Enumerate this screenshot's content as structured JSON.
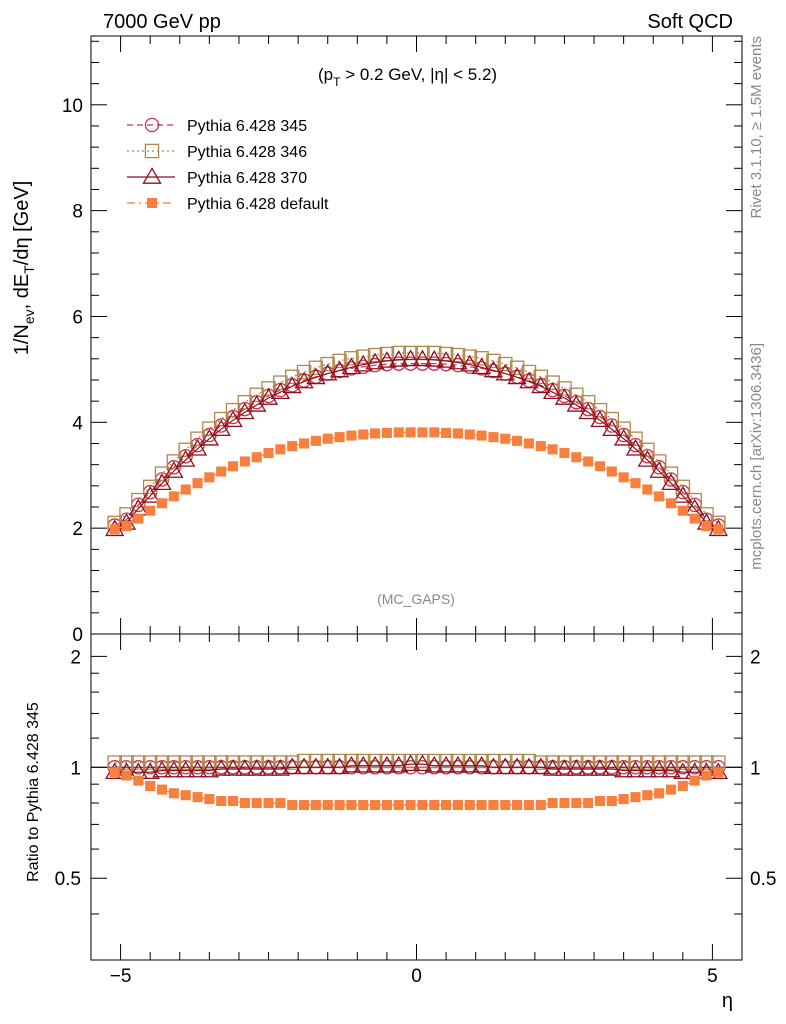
{
  "header": {
    "left": "7000 GeV pp",
    "right": "Soft QCD"
  },
  "side_text": {
    "rivet": "Rivet 3.1.10, ≥ 1.5M events",
    "source": "mcplots.cern.ch [arXiv:1306.3436]"
  },
  "chart_data": {
    "type": "scatter",
    "annotation": "(MC_GAPS)",
    "cut_label": {
      "pre": "(p",
      "sub": "T",
      "post": " > 0.2 GeV, |η| < 5.2)"
    },
    "xlabel": "η",
    "xlim": [
      -5.5,
      5.5
    ],
    "xticks": [
      -5,
      0,
      5
    ],
    "xtick_labels": [
      "−5",
      "0",
      "5"
    ],
    "main": {
      "ylabel": {
        "a": "1/N",
        "a_sub": "ev",
        "b": ", dE",
        "b_sub": "T",
        "c": "/dη [GeV]"
      },
      "ylim": [
        0,
        11.3
      ],
      "yticks": [
        0,
        2,
        4,
        6,
        8,
        10
      ],
      "ytick_labels": [
        "0",
        "2",
        "4",
        "6",
        "8",
        "10"
      ]
    },
    "ratio": {
      "ylabel": "Ratio to Pythia 6.428 345",
      "ylim": [
        0.3,
        2.3
      ],
      "log": true,
      "yticks": [
        0.5,
        1,
        2
      ],
      "ytick_labels": [
        "0.5",
        "1",
        "2"
      ]
    },
    "legend_position": "top-left",
    "x": [
      -5.1,
      -4.9,
      -4.7,
      -4.5,
      -4.3,
      -4.1,
      -3.9,
      -3.7,
      -3.5,
      -3.3,
      -3.1,
      -2.9,
      -2.7,
      -2.5,
      -2.3,
      -2.1,
      -1.9,
      -1.7,
      -1.5,
      -1.3,
      -1.1,
      -0.9,
      -0.7,
      -0.5,
      -0.3,
      -0.1,
      0.1,
      0.3,
      0.5,
      0.7,
      0.9,
      1.1,
      1.3,
      1.5,
      1.7,
      1.9,
      2.1,
      2.3,
      2.5,
      2.7,
      2.9,
      3.1,
      3.3,
      3.5,
      3.7,
      3.9,
      4.1,
      4.3,
      4.5,
      4.7,
      4.9,
      5.1
    ],
    "series": [
      {
        "name": "Pythia 6.428 345",
        "color": "#c8334f",
        "marker": "open-circle",
        "linestyle": "dashed",
        "values": [
          2.05,
          2.16,
          2.44,
          2.68,
          2.92,
          3.15,
          3.36,
          3.57,
          3.76,
          3.94,
          4.1,
          4.25,
          4.38,
          4.5,
          4.61,
          4.7,
          4.79,
          4.86,
          4.92,
          4.97,
          5.02,
          5.05,
          5.08,
          5.1,
          5.11,
          5.11,
          5.11,
          5.11,
          5.1,
          5.08,
          5.05,
          5.02,
          4.97,
          4.92,
          4.86,
          4.79,
          4.7,
          4.61,
          4.5,
          4.38,
          4.25,
          4.1,
          3.94,
          3.76,
          3.57,
          3.36,
          3.15,
          2.92,
          2.68,
          2.44,
          2.16,
          2.05
        ],
        "ratio": [
          1,
          1,
          1,
          1,
          1,
          1,
          1,
          1,
          1,
          1,
          1,
          1,
          1,
          1,
          1,
          1,
          1,
          1,
          1,
          1,
          1,
          1,
          1,
          1,
          1,
          1,
          1,
          1,
          1,
          1,
          1,
          1,
          1,
          1,
          1,
          1,
          1,
          1,
          1,
          1,
          1,
          1,
          1,
          1,
          1,
          1,
          1,
          1,
          1,
          1,
          1,
          1
        ]
      },
      {
        "name": "Pythia 6.428 346",
        "color": "#b0874c",
        "marker": "open-square",
        "linestyle": "dotted",
        "values": [
          2.1,
          2.26,
          2.53,
          2.78,
          3.03,
          3.26,
          3.48,
          3.69,
          3.88,
          4.06,
          4.23,
          4.38,
          4.52,
          4.64,
          4.75,
          4.86,
          4.95,
          5.03,
          5.1,
          5.16,
          5.21,
          5.24,
          5.27,
          5.29,
          5.31,
          5.31,
          5.31,
          5.31,
          5.29,
          5.27,
          5.24,
          5.21,
          5.16,
          5.1,
          5.03,
          4.95,
          4.86,
          4.75,
          4.64,
          4.52,
          4.38,
          4.23,
          4.06,
          3.88,
          3.69,
          3.48,
          3.26,
          3.03,
          2.78,
          2.53,
          2.26,
          2.1
        ],
        "ratio": [
          1.03,
          1.03,
          1.03,
          1.03,
          1.03,
          1.03,
          1.03,
          1.03,
          1.03,
          1.03,
          1.03,
          1.03,
          1.03,
          1.03,
          1.03,
          1.03,
          1.04,
          1.04,
          1.04,
          1.04,
          1.04,
          1.04,
          1.04,
          1.04,
          1.04,
          1.04,
          1.04,
          1.04,
          1.04,
          1.04,
          1.04,
          1.04,
          1.04,
          1.04,
          1.04,
          1.04,
          1.03,
          1.03,
          1.03,
          1.03,
          1.03,
          1.03,
          1.03,
          1.03,
          1.03,
          1.03,
          1.03,
          1.03,
          1.03,
          1.03,
          1.03,
          1.03
        ]
      },
      {
        "name": "Pythia 6.428 370",
        "color": "#8f0f1f",
        "marker": "open-triangle",
        "linestyle": "solid",
        "values": [
          1.98,
          2.1,
          2.37,
          2.61,
          2.85,
          3.08,
          3.29,
          3.5,
          3.69,
          3.87,
          4.04,
          4.19,
          4.33,
          4.46,
          4.57,
          4.68,
          4.77,
          4.85,
          4.92,
          4.98,
          5.04,
          5.09,
          5.13,
          5.16,
          5.18,
          5.19,
          5.19,
          5.18,
          5.16,
          5.13,
          5.09,
          5.04,
          4.98,
          4.92,
          4.85,
          4.77,
          4.68,
          4.57,
          4.46,
          4.33,
          4.19,
          4.04,
          3.87,
          3.69,
          3.5,
          3.29,
          3.08,
          2.85,
          2.61,
          2.37,
          2.1,
          1.98
        ],
        "ratio": [
          0.97,
          0.97,
          0.97,
          0.97,
          0.98,
          0.98,
          0.98,
          0.98,
          0.98,
          0.99,
          0.99,
          0.99,
          0.99,
          0.99,
          0.99,
          1,
          1,
          1,
          1,
          1,
          1.01,
          1.01,
          1.01,
          1.01,
          1.01,
          1.02,
          1.02,
          1.01,
          1.01,
          1.01,
          1.01,
          1.01,
          1,
          1,
          1,
          1,
          1,
          0.99,
          0.99,
          0.99,
          0.99,
          0.99,
          0.99,
          0.98,
          0.98,
          0.98,
          0.98,
          0.98,
          0.97,
          0.97,
          0.97,
          0.97
        ]
      },
      {
        "name": "Pythia 6.428 default",
        "color": "#f7803e",
        "marker": "filled-square",
        "linestyle": "dashdot",
        "values": [
          1.98,
          2.04,
          2.18,
          2.33,
          2.47,
          2.6,
          2.73,
          2.85,
          2.96,
          3.07,
          3.17,
          3.26,
          3.34,
          3.42,
          3.49,
          3.55,
          3.6,
          3.65,
          3.69,
          3.72,
          3.75,
          3.77,
          3.79,
          3.8,
          3.81,
          3.81,
          3.81,
          3.81,
          3.8,
          3.79,
          3.77,
          3.75,
          3.72,
          3.69,
          3.65,
          3.6,
          3.55,
          3.49,
          3.42,
          3.34,
          3.26,
          3.17,
          3.07,
          2.96,
          2.85,
          2.73,
          2.6,
          2.47,
          2.33,
          2.18,
          2.04,
          1.98
        ],
        "ratio": [
          0.97,
          0.95,
          0.92,
          0.89,
          0.87,
          0.85,
          0.84,
          0.83,
          0.82,
          0.81,
          0.81,
          0.8,
          0.8,
          0.8,
          0.8,
          0.79,
          0.79,
          0.79,
          0.79,
          0.79,
          0.79,
          0.79,
          0.79,
          0.79,
          0.79,
          0.79,
          0.79,
          0.79,
          0.79,
          0.79,
          0.79,
          0.79,
          0.79,
          0.79,
          0.79,
          0.79,
          0.79,
          0.8,
          0.8,
          0.8,
          0.8,
          0.81,
          0.81,
          0.82,
          0.83,
          0.84,
          0.85,
          0.87,
          0.89,
          0.92,
          0.95,
          0.97
        ]
      }
    ]
  }
}
